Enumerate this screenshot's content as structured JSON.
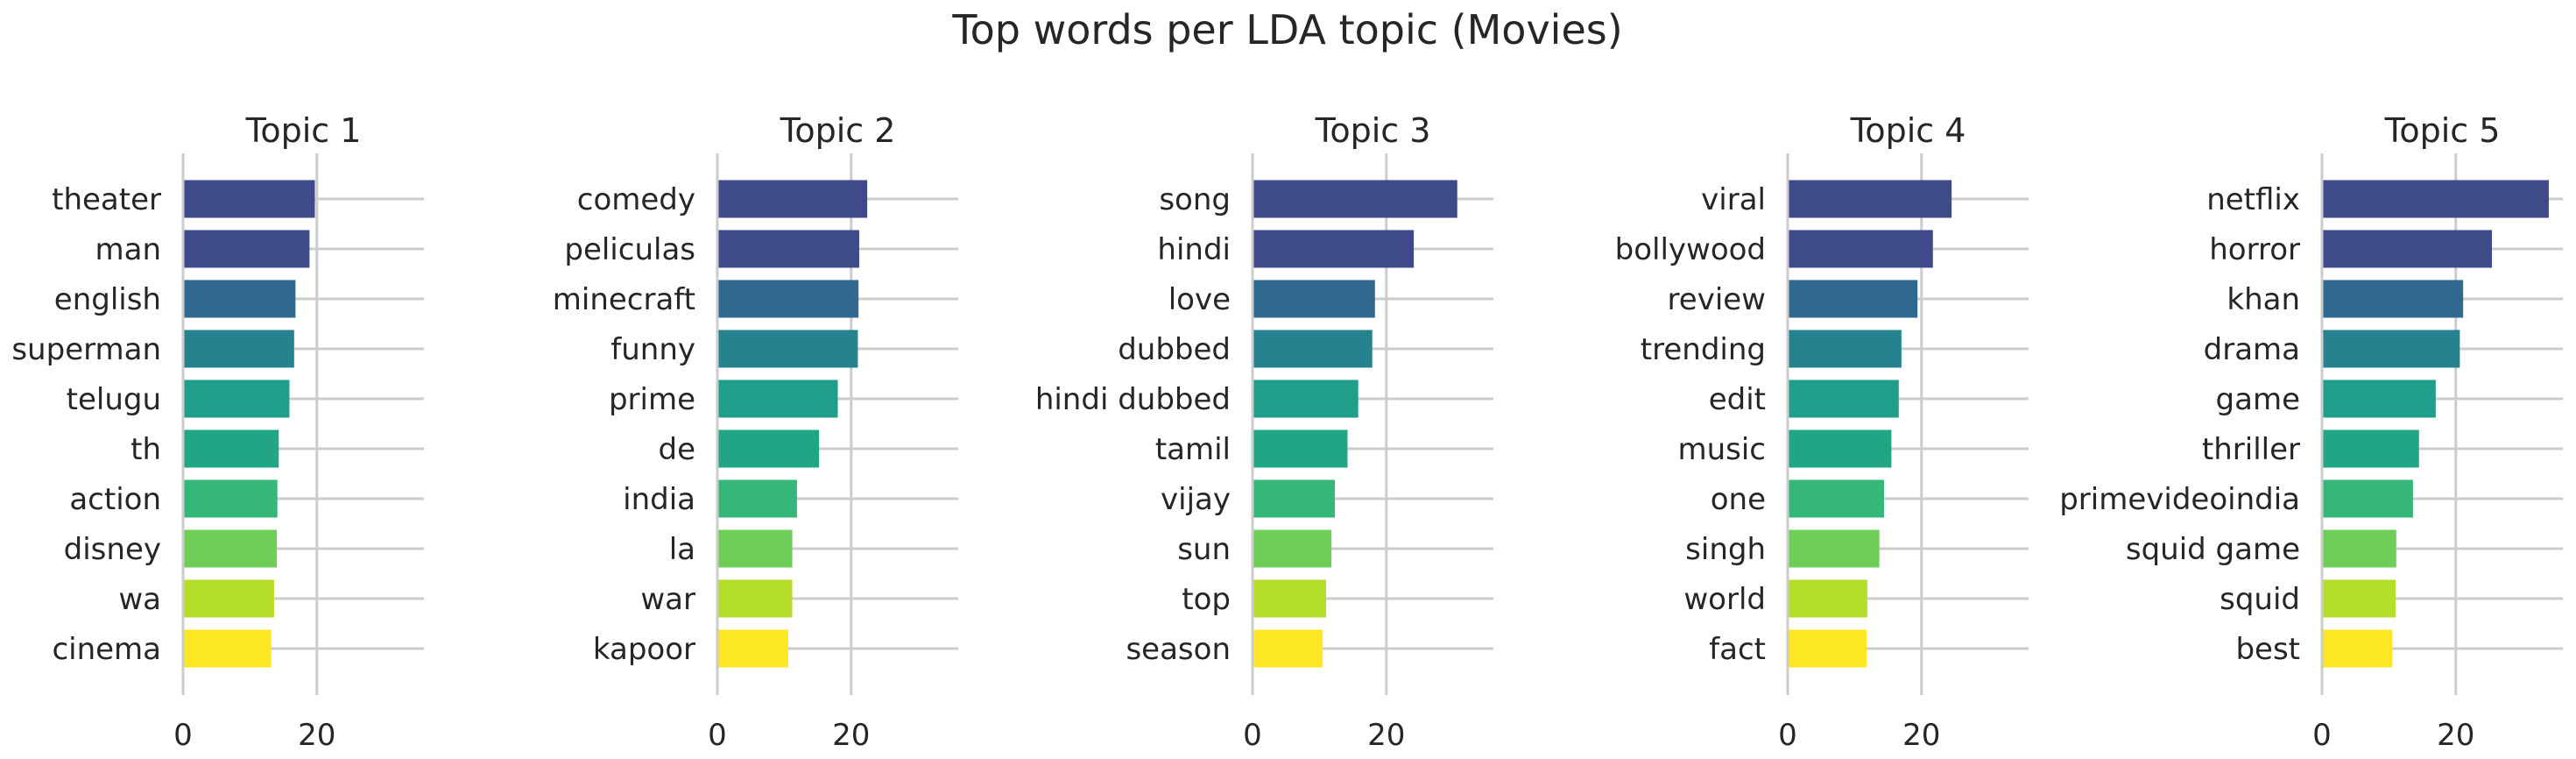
{
  "title": "Top words per LDA topic (Movies)",
  "colors": [
    "#3e4a89",
    "#3e4a89",
    "#31688e",
    "#26828e",
    "#1f9e89",
    "#21a685",
    "#35b779",
    "#6ece58",
    "#b5de2b",
    "#fde725"
  ],
  "chart_data": [
    {
      "type": "bar",
      "orientation": "horizontal",
      "title": "Topic 1",
      "categories": [
        "theater",
        "man",
        "english",
        "superman",
        "telugu",
        "th",
        "action",
        "disney",
        "wa",
        "cinema"
      ],
      "values": [
        19.7,
        18.9,
        16.8,
        16.6,
        15.9,
        14.3,
        14.1,
        14.0,
        13.6,
        13.2
      ],
      "xticks": [
        0,
        20
      ],
      "xlim": [
        0,
        36
      ],
      "grid": true
    },
    {
      "type": "bar",
      "orientation": "horizontal",
      "title": "Topic 2",
      "categories": [
        "comedy",
        "peliculas",
        "minecraft",
        "funny",
        "prime",
        "de",
        "india",
        "la",
        "war",
        "kapoor"
      ],
      "values": [
        22.4,
        21.2,
        21.1,
        21.0,
        18.0,
        15.2,
        11.9,
        11.2,
        11.2,
        10.6
      ],
      "xticks": [
        0,
        20
      ],
      "xlim": [
        0,
        36
      ],
      "grid": true
    },
    {
      "type": "bar",
      "orientation": "horizontal",
      "title": "Topic 3",
      "categories": [
        "song",
        "hindi",
        "love",
        "dubbed",
        "hindi dubbed",
        "tamil",
        "vijay",
        "sun",
        "top",
        "season"
      ],
      "values": [
        30.6,
        24.1,
        18.3,
        17.9,
        15.8,
        14.2,
        12.3,
        11.8,
        11.0,
        10.5
      ],
      "xticks": [
        0,
        20
      ],
      "xlim": [
        0,
        36
      ],
      "grid": true
    },
    {
      "type": "bar",
      "orientation": "horizontal",
      "title": "Topic 4",
      "categories": [
        "viral",
        "bollywood",
        "review",
        "trending",
        "edit",
        "music",
        "one",
        "singh",
        "world",
        "fact"
      ],
      "values": [
        24.5,
        21.7,
        19.4,
        17.0,
        16.6,
        15.5,
        14.4,
        13.7,
        11.9,
        11.8
      ],
      "xticks": [
        0,
        20
      ],
      "xlim": [
        0,
        36
      ],
      "grid": true
    },
    {
      "type": "bar",
      "orientation": "horizontal",
      "title": "Topic 5",
      "categories": [
        "netflix",
        "horror",
        "khan",
        "drama",
        "game",
        "thriller",
        "primevideoindia",
        "squid game",
        "squid",
        "best"
      ],
      "values": [
        33.9,
        25.4,
        21.1,
        20.6,
        17.0,
        14.5,
        13.6,
        11.1,
        11.0,
        10.5
      ],
      "xticks": [
        0,
        20
      ],
      "xlim": [
        0,
        36
      ],
      "grid": true
    }
  ]
}
